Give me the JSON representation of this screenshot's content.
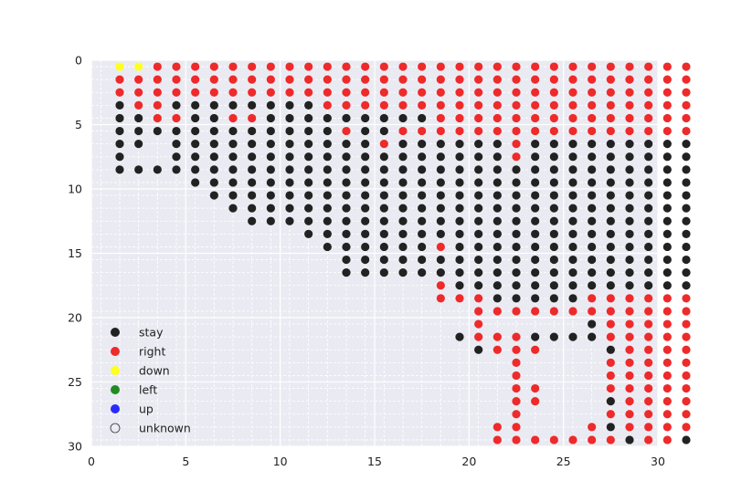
{
  "chart_data": {
    "type": "scatter",
    "title": "",
    "xlabel": "",
    "ylabel": "",
    "xlim": [
      0,
      30
    ],
    "ylim": [
      30,
      0
    ],
    "y_inverted": true,
    "x_ticks": [
      0,
      5,
      10,
      15,
      20,
      25,
      30
    ],
    "y_ticks": [
      0,
      5,
      10,
      15,
      20,
      25,
      30
    ],
    "grid": true,
    "legend_position": "lower-left",
    "cell_offset": 0.5,
    "legend": [
      {
        "key": "S",
        "label": "stay",
        "color": "#222222"
      },
      {
        "key": "R",
        "label": "right",
        "color": "#ee2a2a"
      },
      {
        "key": "D",
        "label": "down",
        "color": "#ffff22"
      },
      {
        "key": "L",
        "label": "left",
        "color": "#228b22"
      },
      {
        "key": "U",
        "label": "up",
        "color": "#2a2aff"
      },
      {
        "key": "?",
        "label": "unknown",
        "color": "none"
      }
    ],
    "rows": [
      ".DDRRRRRRRRRRRRRRRRRRRRRRRRRRRRR",
      ".RRRRRRRRRRRRRRRRRRRRRRRRRRRRRRR",
      ".RRRRRRRRRRRRRRRRRRRRRRRRRRRRRRR",
      ".SRRSSSSSSSSRRRRRRRRRRRRRRRRRRRR",
      ".SSRRSSRRSSSSSSSSSRRRRRRRRRRRRRR",
      ".SSSSSSSSSSSSRSSRRRRRRRRRRRRRRRR",
      ".SS.SSSSSSSSSSSRSSSSSSRSSSSSSSSS",
      ".S..SSSSSSSSSSSSSSSSSSRSSSSSSSSS",
      ".SSSSSSSSSSSSSSSSSSSSSSSSSSSSSSS",
      ".....SSSSSSSSSSSSSSSSSSSSSSSSSSS",
      "......SSSSSSSSSSSSSSSSSSSSSSSSSS",
      ".......SSSSSSSSSSSSSSSSSSSSSSSSS",
      "........SSSSSSSSSSSSSSSSSSSSSSSS",
      "...........SSSSSSSSSSSSSSSSSSSSS",
      "............SSSSSSRSSSSSSSSSSSSS",
      ".............SSSSSSSSSSSSSSSSSSS",
      ".............SSSSSSSSSSSSSSSSSSS",
      "..................RSSSSSSSSSSSSS",
      "..................RRRSSSSSRRRRRR",
      "....................RRRRRRRRRRRR",
      "....................R.....SRRRRR",
      "...................SRRRSSSSRRRRR",
      "....................SRRR...SRRRR",
      "......................R....RRRRR",
      "......................R....RRRRR",
      "......................RR...RRRRR",
      "......................RR...SRRRR",
      "......................R....RRRRR",
      ".....................RR...RSRRRR",
      ".....................RRRRRRRSRRS"
    ]
  }
}
